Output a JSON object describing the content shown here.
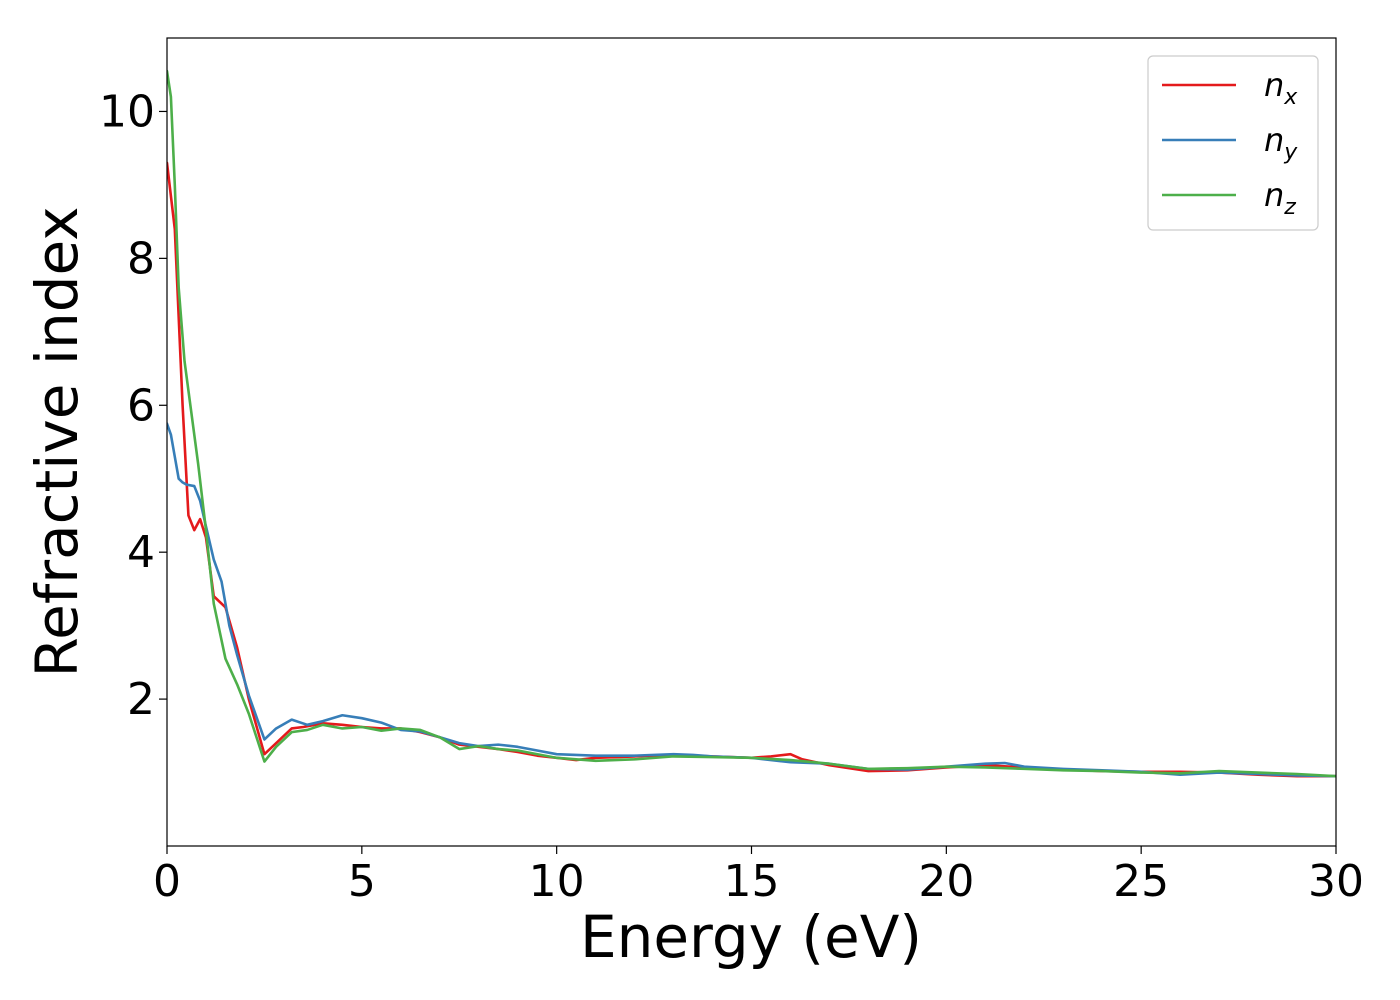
{
  "chart_data": {
    "type": "line",
    "title": "",
    "xlabel": "Energy (eV)",
    "ylabel": "Refractive index",
    "xlim": [
      0,
      30
    ],
    "ylim": [
      0,
      11
    ],
    "xticks": [
      0,
      5,
      10,
      15,
      20,
      25,
      30
    ],
    "yticks": [
      2,
      4,
      6,
      8,
      10
    ],
    "grid": false,
    "legend_position": "top-right",
    "series": [
      {
        "name": "n_x",
        "label_base": "n",
        "label_sub": "x",
        "color": "#e41a1c",
        "x": [
          0,
          0.2,
          0.4,
          0.55,
          0.7,
          0.85,
          1.0,
          1.2,
          1.5,
          1.8,
          2.1,
          2.5,
          2.8,
          3.2,
          3.5,
          4.0,
          4.5,
          5.0,
          5.5,
          6.0,
          6.5,
          7.0,
          7.5,
          8.0,
          8.5,
          9.0,
          9.5,
          10.0,
          10.5,
          11.0,
          12.0,
          13.0,
          14.0,
          15.0,
          15.5,
          16.0,
          16.3,
          17.0,
          18.0,
          19.0,
          20.0,
          21.0,
          22.0,
          23.0,
          24.0,
          25.0,
          26.0,
          27.0,
          28.0,
          29.0,
          30.0
        ],
        "y": [
          9.3,
          8.4,
          6.0,
          4.5,
          4.3,
          4.45,
          4.2,
          3.4,
          3.25,
          2.7,
          2.0,
          1.25,
          1.4,
          1.6,
          1.62,
          1.67,
          1.65,
          1.62,
          1.6,
          1.6,
          1.55,
          1.48,
          1.38,
          1.35,
          1.32,
          1.28,
          1.23,
          1.2,
          1.17,
          1.2,
          1.22,
          1.24,
          1.22,
          1.2,
          1.22,
          1.25,
          1.18,
          1.1,
          1.02,
          1.03,
          1.07,
          1.1,
          1.07,
          1.04,
          1.02,
          1.01,
          1.01,
          1.0,
          0.97,
          0.95,
          0.95
        ]
      },
      {
        "name": "n_y",
        "label_base": "n",
        "label_sub": "y",
        "color": "#377eb8",
        "x": [
          0,
          0.1,
          0.2,
          0.3,
          0.4,
          0.5,
          0.7,
          0.85,
          1.0,
          1.2,
          1.4,
          1.6,
          1.8,
          2.1,
          2.5,
          2.8,
          3.2,
          3.6,
          4.0,
          4.5,
          5.0,
          5.5,
          6.0,
          6.5,
          7.0,
          7.5,
          8.0,
          8.5,
          9.0,
          9.5,
          10.0,
          10.5,
          11.0,
          12.0,
          13.0,
          13.5,
          14.0,
          15.0,
          16.0,
          17.0,
          18.0,
          19.0,
          20.0,
          21.0,
          21.5,
          22.0,
          23.0,
          24.0,
          25.0,
          26.0,
          27.0,
          28.0,
          29.0,
          30.0
        ],
        "y": [
          5.75,
          5.6,
          5.3,
          5.0,
          4.95,
          4.92,
          4.9,
          4.7,
          4.35,
          3.9,
          3.6,
          3.0,
          2.6,
          2.05,
          1.45,
          1.6,
          1.72,
          1.65,
          1.7,
          1.78,
          1.74,
          1.68,
          1.58,
          1.56,
          1.48,
          1.4,
          1.36,
          1.38,
          1.35,
          1.3,
          1.25,
          1.24,
          1.23,
          1.23,
          1.25,
          1.24,
          1.22,
          1.2,
          1.14,
          1.12,
          1.05,
          1.04,
          1.08,
          1.12,
          1.13,
          1.08,
          1.05,
          1.03,
          1.01,
          0.97,
          1.0,
          0.98,
          0.96,
          0.95
        ]
      },
      {
        "name": "n_z",
        "label_base": "n",
        "label_sub": "z",
        "color": "#4daf4a",
        "x": [
          0,
          0.1,
          0.2,
          0.3,
          0.45,
          0.6,
          0.8,
          1.0,
          1.2,
          1.5,
          1.8,
          2.1,
          2.5,
          2.8,
          3.2,
          3.6,
          4.0,
          4.5,
          5.0,
          5.5,
          6.0,
          6.5,
          7.0,
          7.5,
          8.0,
          8.5,
          9.0,
          10.0,
          11.0,
          12.0,
          13.0,
          14.0,
          15.0,
          16.0,
          17.0,
          18.0,
          19.0,
          20.0,
          21.0,
          22.0,
          23.0,
          24.0,
          25.0,
          26.0,
          27.0,
          28.0,
          29.0,
          30.0
        ],
        "y": [
          10.55,
          10.2,
          9.0,
          7.6,
          6.6,
          6.0,
          5.2,
          4.3,
          3.3,
          2.55,
          2.2,
          1.8,
          1.15,
          1.35,
          1.55,
          1.58,
          1.65,
          1.6,
          1.62,
          1.57,
          1.6,
          1.58,
          1.48,
          1.32,
          1.36,
          1.32,
          1.3,
          1.2,
          1.16,
          1.18,
          1.22,
          1.21,
          1.2,
          1.17,
          1.12,
          1.05,
          1.06,
          1.08,
          1.07,
          1.05,
          1.03,
          1.02,
          1.0,
          0.99,
          1.02,
          1.0,
          0.98,
          0.95
        ]
      }
    ]
  }
}
